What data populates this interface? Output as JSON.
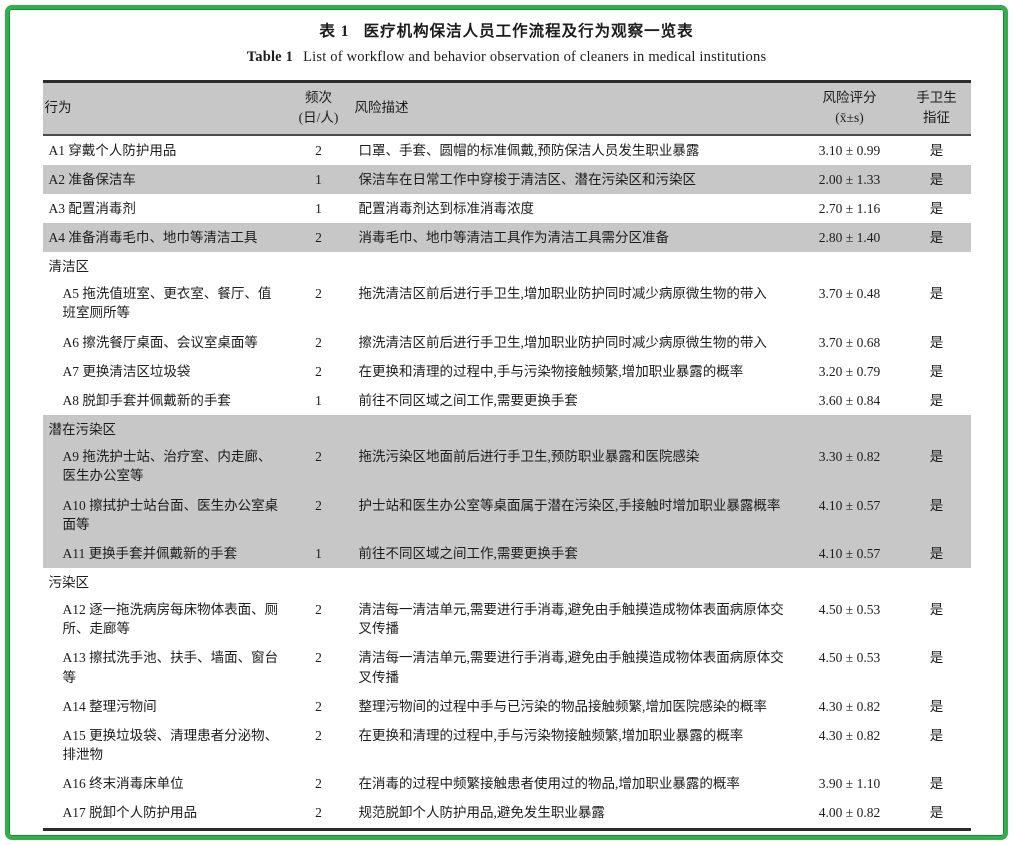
{
  "colors": {
    "frame_green": "#2fb04a",
    "frame_green_dark": "#1d8a35",
    "row_shade_gray": "#c7c7c7",
    "rule_dark": "#2b2b2b",
    "text": "#1c1c1c"
  },
  "header": {
    "title_zh_label": "表 1",
    "title_zh": "医疗机构保洁人员工作流程及行为观察一览表",
    "title_en_label": "Table 1",
    "title_en": "List of workflow and behavior observation of cleaners in medical institutions"
  },
  "table": {
    "columns": [
      {
        "label": "行为",
        "label2": ""
      },
      {
        "label": "频次",
        "label2": "(日/人)"
      },
      {
        "label": "风险描述",
        "label2": ""
      },
      {
        "label": "风险评分",
        "label2": "(x̄±s)"
      },
      {
        "label": "手卫生",
        "label2": "指征"
      }
    ],
    "rows": [
      {
        "type": "item",
        "behavior": "A1 穿戴个人防护用品",
        "freq": "2",
        "desc": "口罩、手套、圆帽的标准佩戴,预防保洁人员发生职业暴露",
        "score": "3.10 ± 0.99",
        "hand": "是",
        "shaded": false,
        "indent": false
      },
      {
        "type": "item",
        "behavior": "A2 准备保洁车",
        "freq": "1",
        "desc": "保洁车在日常工作中穿梭于清洁区、潜在污染区和污染区",
        "score": "2.00 ± 1.33",
        "hand": "是",
        "shaded": true,
        "indent": false
      },
      {
        "type": "item",
        "behavior": "A3 配置消毒剂",
        "freq": "1",
        "desc": "配置消毒剂达到标准消毒浓度",
        "score": "2.70 ± 1.16",
        "hand": "是",
        "shaded": false,
        "indent": false
      },
      {
        "type": "item",
        "behavior": "A4 准备消毒毛巾、地巾等清洁工具",
        "freq": "2",
        "desc": "消毒毛巾、地巾等清洁工具作为清洁工具需分区准备",
        "score": "2.80 ± 1.40",
        "hand": "是",
        "shaded": true,
        "indent": false
      },
      {
        "type": "section",
        "label": "清洁区",
        "shaded": false
      },
      {
        "type": "item",
        "behavior": "A5 拖洗值班室、更衣室、餐厅、值班室厕所等",
        "freq": "2",
        "desc": "拖洗清洁区前后进行手卫生,增加职业防护同时减少病原微生物的带入",
        "score": "3.70 ± 0.48",
        "hand": "是",
        "shaded": false,
        "indent": true
      },
      {
        "type": "item",
        "behavior": "A6 擦洗餐厅桌面、会议室桌面等",
        "freq": "2",
        "desc": "擦洗清洁区前后进行手卫生,增加职业防护同时减少病原微生物的带入",
        "score": "3.70 ± 0.68",
        "hand": "是",
        "shaded": false,
        "indent": true
      },
      {
        "type": "item",
        "behavior": "A7 更换清洁区垃圾袋",
        "freq": "2",
        "desc": "在更换和清理的过程中,手与污染物接触频繁,增加职业暴露的概率",
        "score": "3.20 ± 0.79",
        "hand": "是",
        "shaded": false,
        "indent": true
      },
      {
        "type": "item",
        "behavior": "A8 脱卸手套并佩戴新的手套",
        "freq": "1",
        "desc": "前往不同区域之间工作,需要更换手套",
        "score": "3.60 ± 0.84",
        "hand": "是",
        "shaded": false,
        "indent": true
      },
      {
        "type": "section",
        "label": "潜在污染区",
        "shaded": true
      },
      {
        "type": "item",
        "behavior": "A9 拖洗护士站、治疗室、内走廊、医生办公室等",
        "freq": "2",
        "desc": "拖洗污染区地面前后进行手卫生,预防职业暴露和医院感染",
        "score": "3.30 ± 0.82",
        "hand": "是",
        "shaded": true,
        "indent": true
      },
      {
        "type": "item",
        "behavior": "A10 擦拭护士站台面、医生办公室桌面等",
        "freq": "2",
        "desc": "护士站和医生办公室等桌面属于潜在污染区,手接触时增加职业暴露概率",
        "score": "4.10 ± 0.57",
        "hand": "是",
        "shaded": true,
        "indent": true
      },
      {
        "type": "item",
        "behavior": "A11 更换手套并佩戴新的手套",
        "freq": "1",
        "desc": "前往不同区域之间工作,需要更换手套",
        "score": "4.10 ± 0.57",
        "hand": "是",
        "shaded": true,
        "indent": true
      },
      {
        "type": "section",
        "label": "污染区",
        "shaded": false
      },
      {
        "type": "item",
        "behavior": "A12 逐一拖洗病房每床物体表面、厕所、走廊等",
        "freq": "2",
        "desc": "清洁每一清洁单元,需要进行手消毒,避免由手触摸造成物体表面病原体交叉传播",
        "score": "4.50 ± 0.53",
        "hand": "是",
        "shaded": false,
        "indent": true
      },
      {
        "type": "item",
        "behavior": "A13 擦拭洗手池、扶手、墙面、窗台等",
        "freq": "2",
        "desc": "清洁每一清洁单元,需要进行手消毒,避免由手触摸造成物体表面病原体交叉传播",
        "score": "4.50 ± 0.53",
        "hand": "是",
        "shaded": false,
        "indent": true
      },
      {
        "type": "item",
        "behavior": "A14 整理污物间",
        "freq": "2",
        "desc": "整理污物间的过程中手与已污染的物品接触频繁,增加医院感染的概率",
        "score": "4.30 ± 0.82",
        "hand": "是",
        "shaded": false,
        "indent": true
      },
      {
        "type": "item",
        "behavior": "A15 更换垃圾袋、清理患者分泌物、排泄物",
        "freq": "2",
        "desc": "在更换和清理的过程中,手与污染物接触频繁,增加职业暴露的概率",
        "score": "4.30 ± 0.82",
        "hand": "是",
        "shaded": false,
        "indent": true
      },
      {
        "type": "item",
        "behavior": "A16 终末消毒床单位",
        "freq": "2",
        "desc": "在消毒的过程中频繁接触患者使用过的物品,增加职业暴露的概率",
        "score": "3.90 ± 1.10",
        "hand": "是",
        "shaded": false,
        "indent": true
      },
      {
        "type": "item",
        "behavior": "A17 脱卸个人防护用品",
        "freq": "2",
        "desc": "规范脱卸个人防护用品,避免发生职业暴露",
        "score": "4.00 ± 0.82",
        "hand": "是",
        "shaded": false,
        "indent": true
      }
    ]
  }
}
